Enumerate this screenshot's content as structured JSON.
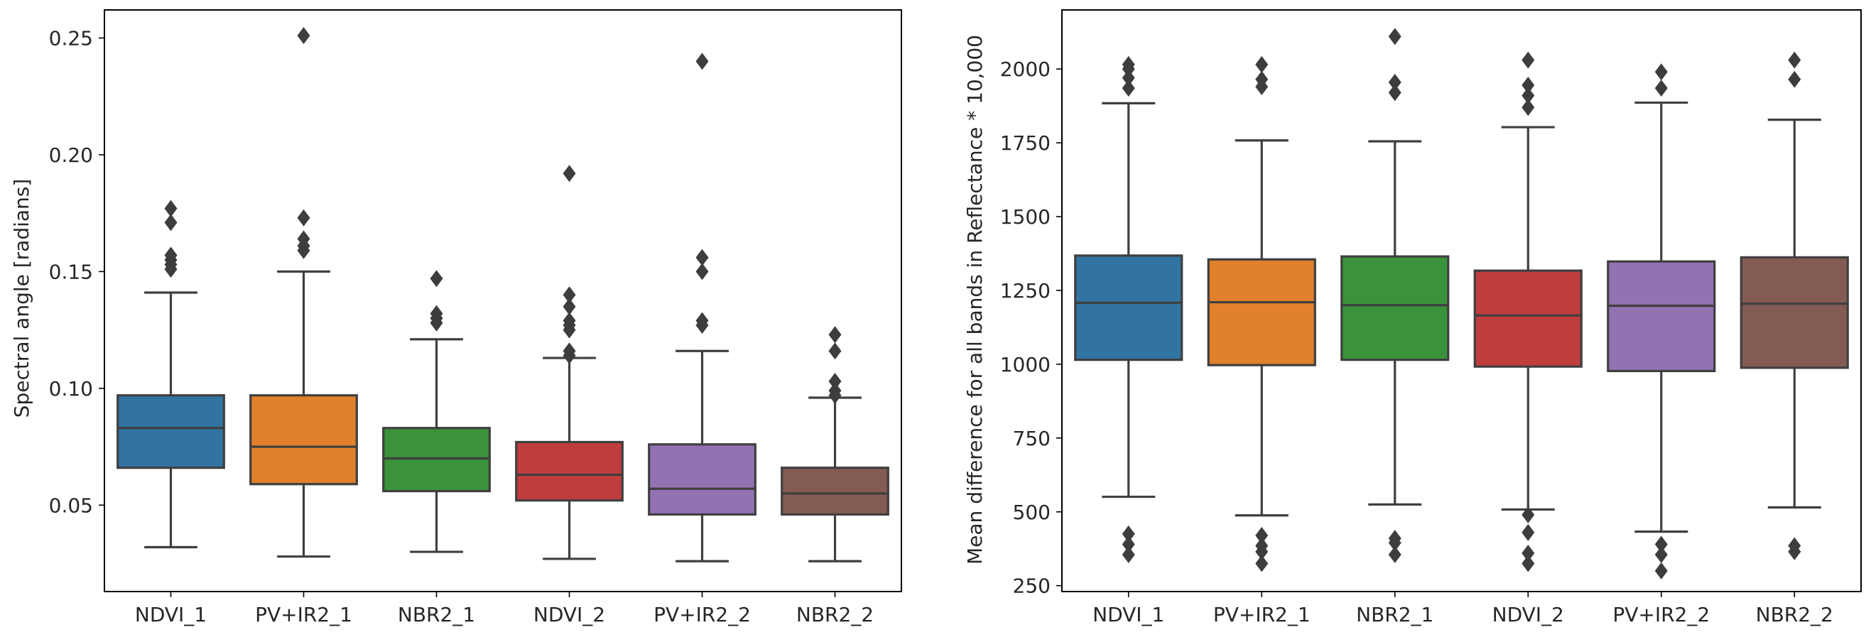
{
  "chart_data": [
    {
      "type": "box",
      "title": "",
      "xlabel": "",
      "ylabel": "Spectral angle [radians]",
      "ylim": [
        0.013,
        0.262
      ],
      "yticks": [
        0.05,
        0.1,
        0.15,
        0.2,
        0.25
      ],
      "ytick_labels": [
        "0.05",
        "0.10",
        "0.15",
        "0.20",
        "0.25"
      ],
      "categories": [
        "NDVI_1",
        "PV+IR2_1",
        "NBR2_1",
        "NDVI_2",
        "PV+IR2_2",
        "NBR2_2"
      ],
      "colors": [
        "#3274a1",
        "#e1812c",
        "#3a923a",
        "#c03d3e",
        "#9372b2",
        "#845b53"
      ],
      "boxes": [
        {
          "whislo": 0.032,
          "q1": 0.066,
          "med": 0.083,
          "q3": 0.097,
          "whishi": 0.141,
          "fliers": [
            0.151,
            0.153,
            0.155,
            0.157,
            0.171,
            0.177
          ]
        },
        {
          "whislo": 0.028,
          "q1": 0.059,
          "med": 0.075,
          "q3": 0.097,
          "whishi": 0.15,
          "fliers": [
            0.159,
            0.161,
            0.164,
            0.173,
            0.251
          ]
        },
        {
          "whislo": 0.03,
          "q1": 0.056,
          "med": 0.07,
          "q3": 0.083,
          "whishi": 0.121,
          "fliers": [
            0.128,
            0.13,
            0.132,
            0.147
          ]
        },
        {
          "whislo": 0.027,
          "q1": 0.052,
          "med": 0.063,
          "q3": 0.077,
          "whishi": 0.113,
          "fliers": [
            0.114,
            0.116,
            0.125,
            0.127,
            0.129,
            0.135,
            0.14,
            0.192
          ]
        },
        {
          "whislo": 0.026,
          "q1": 0.046,
          "med": 0.057,
          "q3": 0.076,
          "whishi": 0.116,
          "fliers": [
            0.127,
            0.129,
            0.15,
            0.156,
            0.24
          ]
        },
        {
          "whislo": 0.026,
          "q1": 0.046,
          "med": 0.055,
          "q3": 0.066,
          "whishi": 0.096,
          "fliers": [
            0.097,
            0.099,
            0.103,
            0.116,
            0.123
          ]
        }
      ]
    },
    {
      "type": "box",
      "title": "",
      "xlabel": "",
      "ylabel": "Mean difference for all bands in Reflectance * 10,000",
      "ylim": [
        230,
        2200
      ],
      "yticks": [
        250,
        500,
        750,
        1000,
        1250,
        1500,
        1750,
        2000
      ],
      "ytick_labels": [
        "250",
        "500",
        "750",
        "1000",
        "1250",
        "1500",
        "1750",
        "2000"
      ],
      "categories": [
        "NDVI_1",
        "PV+IR2_1",
        "NBR2_1",
        "NDVI_2",
        "PV+IR2_2",
        "NBR2_2"
      ],
      "colors": [
        "#3274a1",
        "#e1812c",
        "#3a923a",
        "#c03d3e",
        "#9372b2",
        "#845b53"
      ],
      "boxes": [
        {
          "whislo": 551,
          "q1": 1015,
          "med": 1208,
          "q3": 1368,
          "whishi": 1884,
          "fliers": [
            355,
            390,
            425,
            1935,
            1970,
            2000,
            2015
          ]
        },
        {
          "whislo": 488,
          "q1": 997,
          "med": 1210,
          "q3": 1355,
          "whishi": 1758,
          "fliers": [
            325,
            365,
            385,
            420,
            1940,
            1965,
            2015
          ]
        },
        {
          "whislo": 525,
          "q1": 1015,
          "med": 1200,
          "q3": 1365,
          "whishi": 1755,
          "fliers": [
            355,
            395,
            410,
            1920,
            1955,
            2110
          ]
        },
        {
          "whislo": 508,
          "q1": 992,
          "med": 1165,
          "q3": 1317,
          "whishi": 1803,
          "fliers": [
            325,
            360,
            430,
            490,
            1870,
            1910,
            1945,
            2030
          ]
        },
        {
          "whislo": 433,
          "q1": 977,
          "med": 1198,
          "q3": 1348,
          "whishi": 1886,
          "fliers": [
            300,
            355,
            390,
            1935,
            1990
          ]
        },
        {
          "whislo": 515,
          "q1": 988,
          "med": 1205,
          "q3": 1362,
          "whishi": 1828,
          "fliers": [
            365,
            385,
            1965,
            2030
          ]
        }
      ]
    }
  ],
  "colors": {
    "axis": "#000000",
    "line": "#3f3f3f",
    "flier": "#3d3d3d",
    "text": "#262626"
  }
}
